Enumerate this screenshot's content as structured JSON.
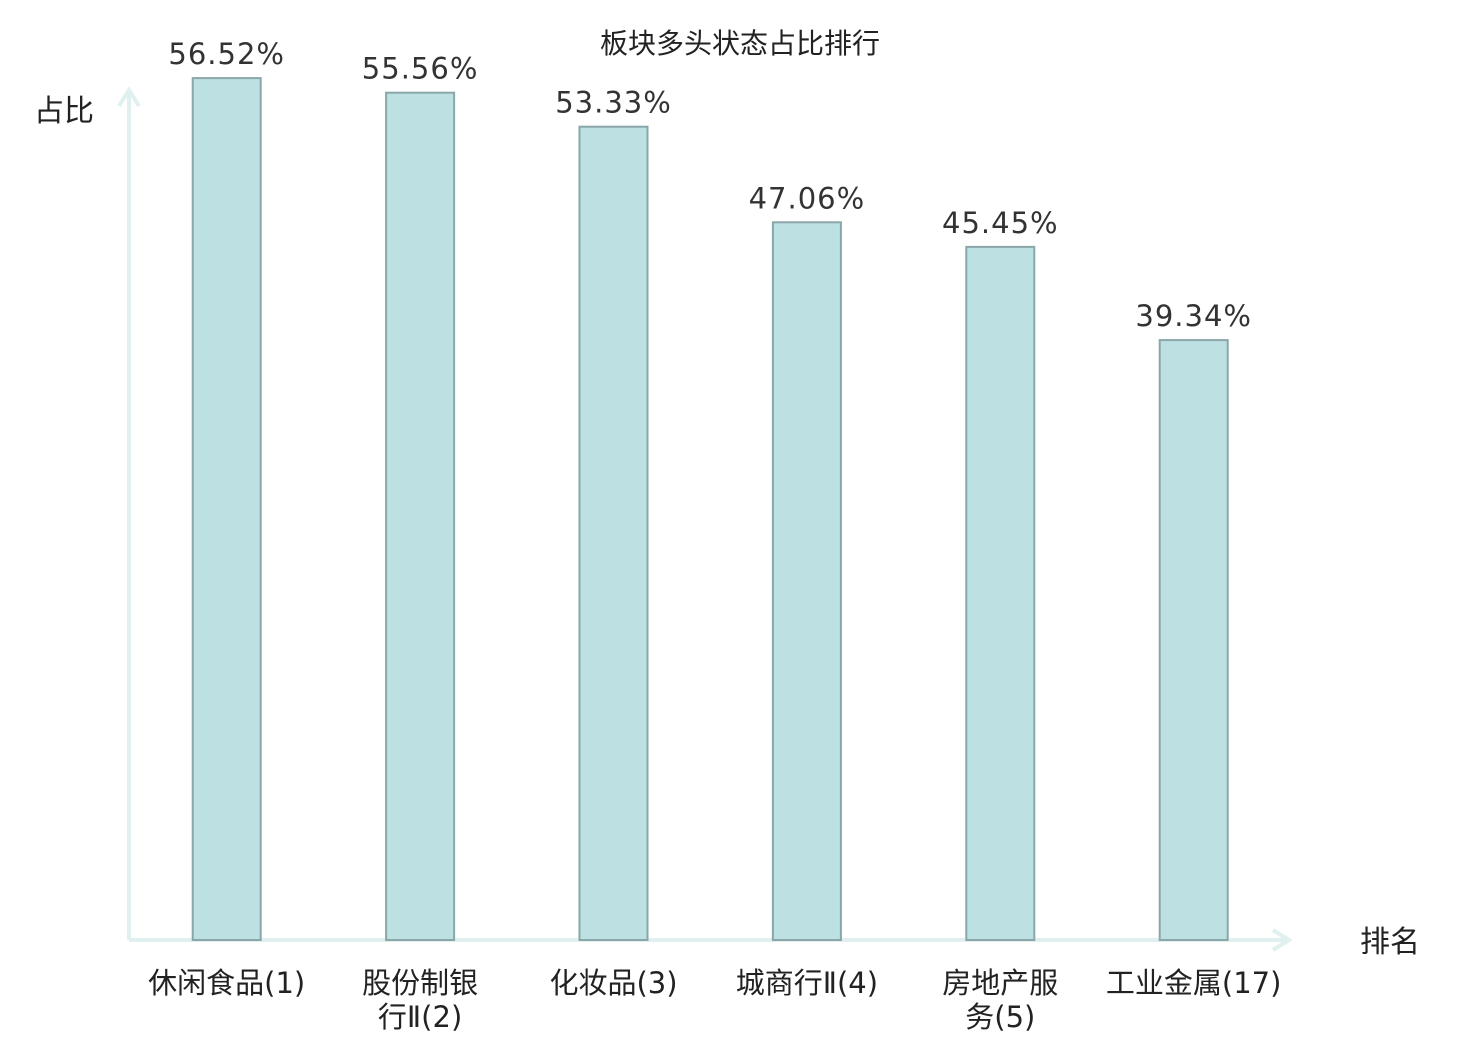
{
  "chart_data": {
    "type": "bar",
    "title": "板块多头状态占比排行",
    "xlabel": "排名",
    "ylabel": "占比",
    "categories": [
      [
        "休闲食品(1)"
      ],
      [
        "股份制银",
        "行Ⅱ(2)"
      ],
      [
        "化妆品(3)"
      ],
      [
        "城商行Ⅱ(4)"
      ],
      [
        "房地产服",
        "务(5)"
      ],
      [
        "工业金属(17)"
      ]
    ],
    "values": [
      56.52,
      55.56,
      53.33,
      47.06,
      45.45,
      39.34
    ],
    "value_labels": [
      "56.52%",
      "55.56%",
      "53.33%",
      "47.06%",
      "45.45%",
      "39.34%"
    ],
    "highlight_index": 5,
    "ylim": [
      0,
      60
    ],
    "grid": false,
    "legend": "none"
  },
  "colors": {
    "bar_fill": "#bde0e3",
    "bar_stroke": "#8aa6a8",
    "axis": "#dff0ef",
    "label": "#222222",
    "value_label": "#333333",
    "highlight": "#e02020"
  }
}
